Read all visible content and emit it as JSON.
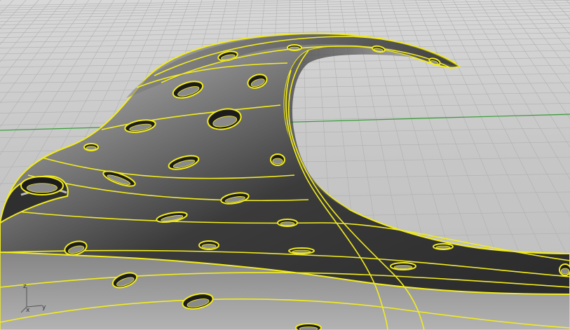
{
  "viewport": {
    "type": "perspective-3d-viewport",
    "grid_visible": true,
    "selection_highlight": "yellow"
  },
  "axis_widget": {
    "z_label": "z",
    "x_label": "x",
    "y_label": "y"
  },
  "colors": {
    "background": "#c6c6c6",
    "grid_line": "#b2b2b2",
    "x_axis_line": "#3a9e3a",
    "selection": "#f2ec1e",
    "surface_dark": "#3e3e3e",
    "surface_light": "#d6d6d6"
  },
  "icons": [
    "axis-gizmo-icon"
  ]
}
